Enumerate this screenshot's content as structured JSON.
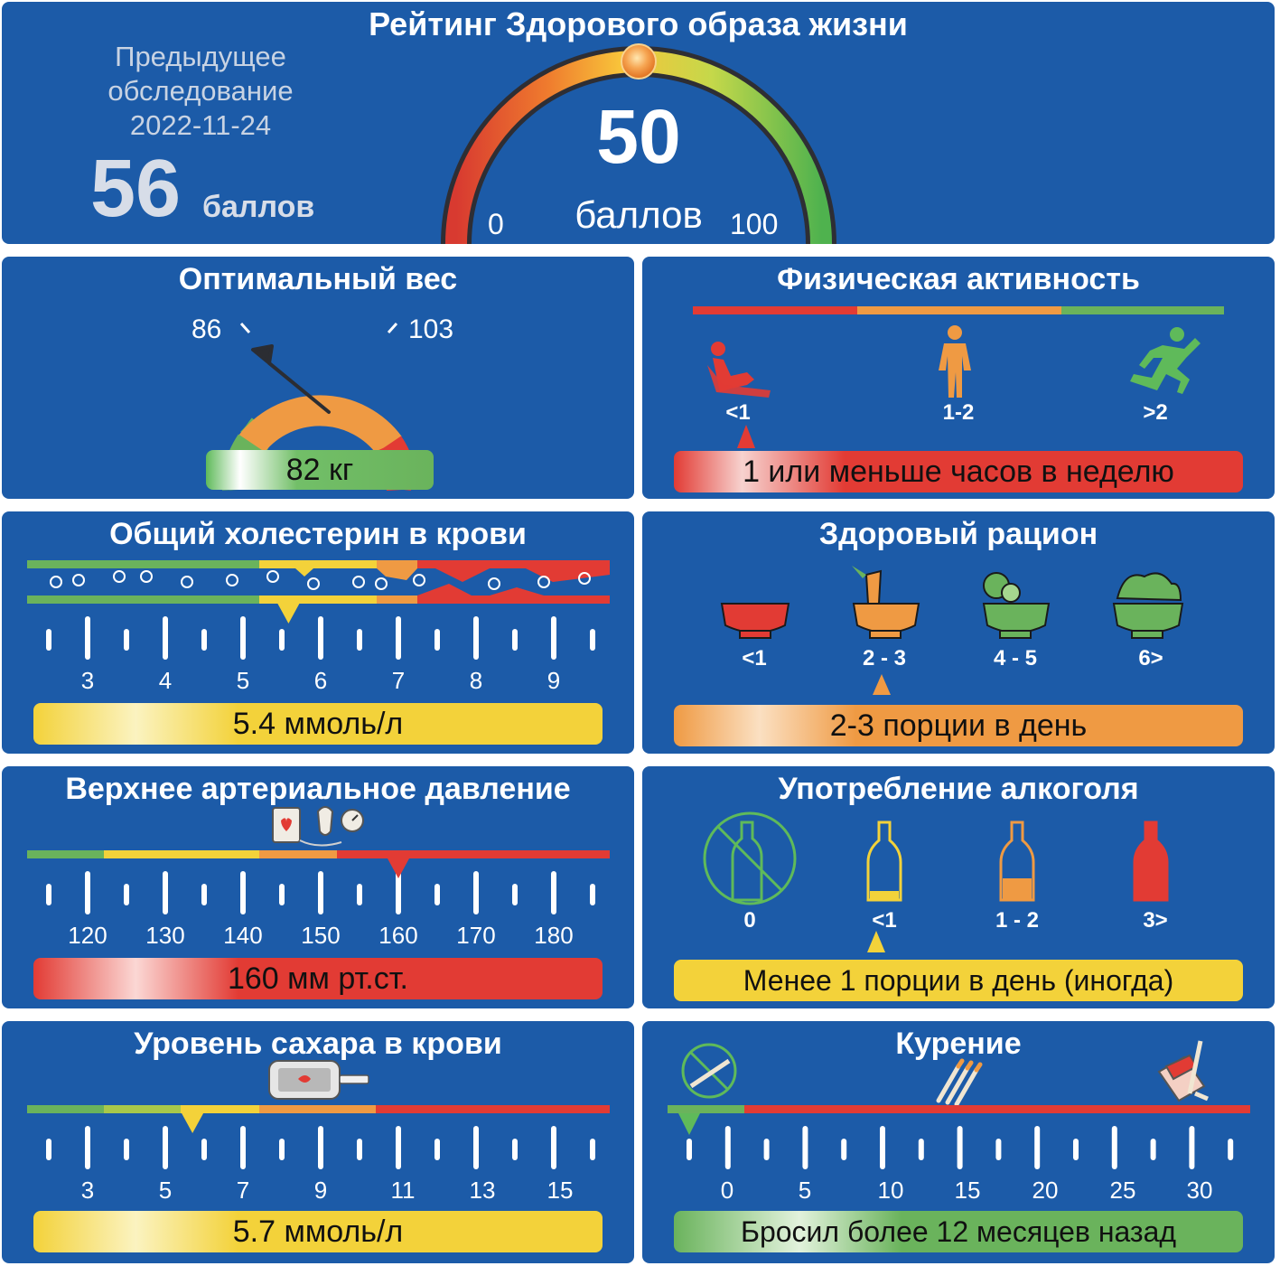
{
  "colors": {
    "panel": "#1c5ba8",
    "green": "#5fba5a",
    "yellow": "#f3d23a",
    "orange": "#f19a3c",
    "red": "#e03a36"
  },
  "header": {
    "title": "Рейтинг Здорового образа жизни",
    "previous_label_1": "Предыдущее",
    "previous_label_2": "обследование",
    "previous_date": "2022-11-24",
    "previous_score": "56",
    "previous_unit": "баллов",
    "score": "50",
    "score_unit": "баллов",
    "gauge_min": "0",
    "gauge_max": "100",
    "score_value": 50
  },
  "weight": {
    "title": "Оптимальный вес",
    "low": "86",
    "high": "103",
    "value_text": "82 кг",
    "value": 82
  },
  "activity": {
    "title": "Физическая активность",
    "levels": [
      "<1",
      "1-2",
      ">2"
    ],
    "icons": [
      "sitting-person-icon",
      "standing-person-icon",
      "running-person-icon"
    ],
    "selected_index": 0,
    "value_text": "1 или меньше часов в неделю"
  },
  "cholesterol": {
    "title": "Общий холестерин в крови",
    "ticks": [
      "3",
      "4",
      "5",
      "6",
      "7",
      "8",
      "9"
    ],
    "value_text": "5.4 ммоль/л",
    "value": 5.4
  },
  "diet": {
    "title": "Здоровый рацион",
    "levels": [
      "<1",
      "2 - 3",
      "4 - 5",
      "6>"
    ],
    "icons": [
      "empty-bowl-icon",
      "carrot-bowl-icon",
      "vegetable-bowl-icon",
      "salad-bowl-icon"
    ],
    "selected_index": 1,
    "value_text": "2-3 порции в день"
  },
  "pressure": {
    "title": "Верхнее артериальное давление",
    "ticks": [
      "120",
      "130",
      "140",
      "150",
      "160",
      "170",
      "180"
    ],
    "icon": "blood-pressure-monitor-icon",
    "value_text": "160 мм рт.ст.",
    "value": 160
  },
  "alcohol": {
    "title": "Употребление алкоголя",
    "levels": [
      "0",
      "<1",
      "1 - 2",
      "3>"
    ],
    "icons": [
      "no-alcohol-icon",
      "bottle-yellow-icon",
      "bottle-orange-icon",
      "bottle-red-icon"
    ],
    "selected_index": 1,
    "value_text": "Менее 1 порции в день (иногда)"
  },
  "sugar": {
    "title": "Уровень сахара в крови",
    "ticks": [
      "3",
      "5",
      "7",
      "9",
      "11",
      "13",
      "15"
    ],
    "icon": "glucometer-icon",
    "value_text": "5.7 ммоль/л",
    "value": 5.7
  },
  "smoking": {
    "title": "Курение",
    "ticks": [
      "0",
      "5",
      "10",
      "15",
      "20",
      "25",
      "30"
    ],
    "icons": [
      "no-smoking-icon",
      "cigarettes-icon",
      "cigarette-pack-icon"
    ],
    "value_text": "Бросил более 12 месяцев назад"
  }
}
